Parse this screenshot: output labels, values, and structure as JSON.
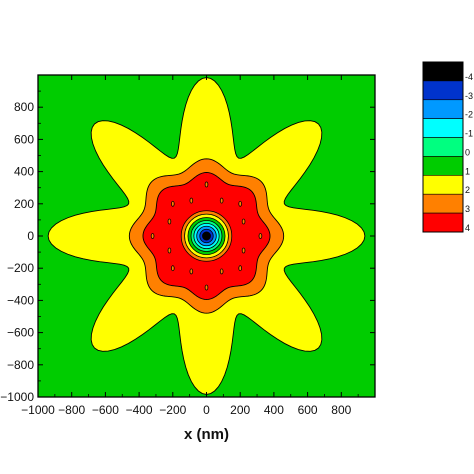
{
  "chart_data": {
    "type": "heatmap",
    "subtype": "filled-contour",
    "title": "",
    "xlabel": "x (nm)",
    "ylabel": "",
    "xlim": [
      -1000,
      1000
    ],
    "ylim": [
      -1000,
      1000
    ],
    "x_ticks": [
      -1000,
      -800,
      -600,
      -400,
      -200,
      0,
      200,
      400,
      600,
      800
    ],
    "x_tick_labels": [
      "−1000",
      "−800",
      "−600",
      "−400",
      "−200",
      "0",
      "200",
      "400",
      "600",
      "800"
    ],
    "y_ticks": [
      -1000,
      -800,
      -600,
      -400,
      -200,
      0,
      200,
      400,
      600,
      800
    ],
    "y_tick_labels": [
      "−1000",
      "−800",
      "−600",
      "−400",
      "−200",
      "0",
      "200",
      "400",
      "600",
      "800"
    ],
    "grid": false,
    "legend_position": "right",
    "levels": [
      {
        "label": "-4",
        "color": "#000000"
      },
      {
        "label": "-3",
        "color": "#0033cc"
      },
      {
        "label": "-2",
        "color": "#0099ff"
      },
      {
        "label": "-1",
        "color": "#00ffff"
      },
      {
        "label": "0",
        "color": "#00ff80"
      },
      {
        "label": "1",
        "color": "#00cc00"
      },
      {
        "label": "2",
        "color": "#ffff00"
      },
      {
        "label": "3",
        "color": "#ff8000"
      },
      {
        "label": "4",
        "color": "#ff0000"
      }
    ],
    "regions": [
      {
        "level": "1",
        "shape": "background (corners and edges)"
      },
      {
        "level": "2",
        "shape": "8-lobed star",
        "mean_radius": 720,
        "lobe_amplitude": 220,
        "lobes": 8
      },
      {
        "level": "3",
        "shape": "wavy ring",
        "mean_radius": 430,
        "lobe_amplitude": 28,
        "lobes": 8
      },
      {
        "level": "4",
        "shape": "wavy ring",
        "mean_radius": 355,
        "lobe_amplitude": 22,
        "lobes": 8
      },
      {
        "level": "3",
        "shape": "disc",
        "radius": 150
      },
      {
        "level": "2",
        "shape": "disc",
        "radius": 130
      },
      {
        "level": "1",
        "shape": "disc",
        "radius": 110
      },
      {
        "level": "0",
        "shape": "disc",
        "radius": 92
      },
      {
        "level": "-1",
        "shape": "disc",
        "radius": 75
      },
      {
        "level": "-2",
        "shape": "disc",
        "radius": 58
      },
      {
        "level": "-3",
        "shape": "disc",
        "radius": 40
      },
      {
        "level": "-4",
        "shape": "disc",
        "radius": 24
      }
    ],
    "islands": {
      "level": "3",
      "radius_data": 15,
      "points": [
        [
          0,
          320
        ],
        [
          0,
          -320
        ],
        [
          320,
          0
        ],
        [
          -320,
          0
        ],
        [
          200,
          200
        ],
        [
          -200,
          200
        ],
        [
          200,
          -200
        ],
        [
          -200,
          -200
        ],
        [
          90,
          220
        ],
        [
          -90,
          220
        ],
        [
          90,
          -220
        ],
        [
          -90,
          -220
        ],
        [
          220,
          90
        ],
        [
          -220,
          90
        ],
        [
          220,
          -90
        ],
        [
          -220,
          -90
        ]
      ]
    }
  }
}
